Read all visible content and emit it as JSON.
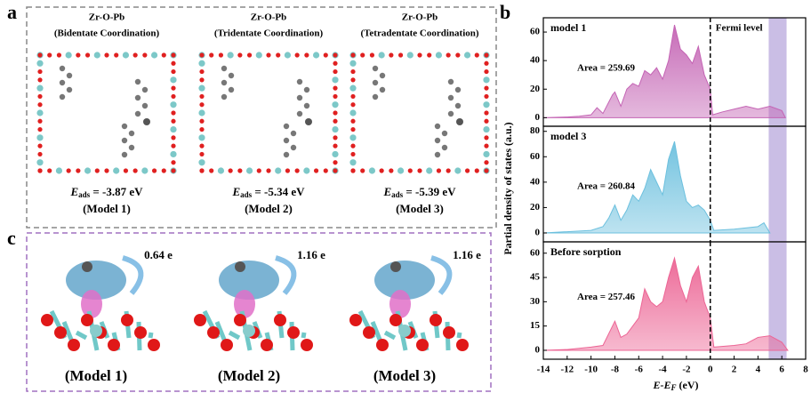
{
  "panel_a": {
    "label": "a",
    "structures": [
      {
        "title": "Zr-O-Pb",
        "subtitle": "(Bidentate Coordination)",
        "energy": [
          "E",
          "ads",
          " = -3.87 eV"
        ],
        "model": "(Model 1)"
      },
      {
        "title": "Zr-O-Pb",
        "subtitle": "(Tridentate Coordination)",
        "energy": [
          "E",
          "ads",
          " = -5.34 eV"
        ],
        "model": "(Model 2)"
      },
      {
        "title": "Zr-O-Pb",
        "subtitle": "(Tetradentate Coordination)",
        "energy": [
          "E",
          "ads",
          " = -5.39 eV"
        ],
        "model": "(Model 3)"
      }
    ]
  },
  "panel_b": {
    "label": "b",
    "y_label": "Partial density of states (a.u.)",
    "x_label": [
      "E-E",
      "F",
      " (eV)"
    ]
  },
  "panel_c": {
    "label": "c",
    "structures": [
      {
        "charge": "0.64 e",
        "model": "(Model 1)"
      },
      {
        "charge": "1.16 e",
        "model": "(Model 2)"
      },
      {
        "charge": "1.16 e",
        "model": "(Model 3)"
      }
    ]
  },
  "chart_data": [
    {
      "type": "area",
      "annotation": "Area = 259.69",
      "vline": 0,
      "vline_label": "Fermi level",
      "shaded_region": [
        4.9,
        6.4
      ],
      "shade_color": "#b8a8dc",
      "x": [
        -14,
        -12,
        -11,
        -10,
        -9.5,
        -9,
        -8.2,
        -8,
        -7.5,
        -7,
        -6.5,
        -6,
        -5.5,
        -5,
        -4.5,
        -4,
        -3.5,
        -3,
        -2.5,
        -2,
        -1.5,
        -1,
        -0.5,
        0,
        0.2,
        1,
        2,
        3,
        4,
        5,
        6,
        6.3
      ],
      "series": [
        {
          "name": "model 1",
          "color": "#c464b4",
          "values": [
            0,
            0.5,
            1,
            2,
            7,
            3,
            16,
            18,
            8,
            20,
            24,
            22,
            33,
            30,
            35,
            27,
            40,
            65,
            48,
            44,
            38,
            50,
            30,
            20,
            2,
            4,
            6,
            8,
            6,
            8,
            5,
            0
          ]
        }
      ],
      "xlim": [
        -14,
        8
      ],
      "ylim": [
        -6,
        70
      ],
      "yticks": [
        0,
        20,
        40,
        60
      ]
    },
    {
      "type": "area",
      "annotation": "Area = 260.84",
      "vline": 0,
      "shaded_region": [
        4.9,
        6.4
      ],
      "shade_color": "#b8a8dc",
      "x": [
        -14,
        -12,
        -10,
        -9,
        -8.5,
        -8,
        -7.5,
        -7,
        -6.5,
        -6,
        -5.5,
        -5,
        -4.5,
        -4,
        -3.5,
        -3,
        -2.5,
        -2,
        -1.5,
        -1,
        -0.5,
        0,
        0.3,
        2,
        4,
        4.5,
        5
      ],
      "series": [
        {
          "name": "model 3",
          "color": "#6cc0de",
          "values": [
            0,
            1,
            2,
            5,
            12,
            22,
            10,
            18,
            30,
            25,
            35,
            50,
            40,
            30,
            58,
            72,
            45,
            25,
            20,
            22,
            18,
            10,
            2,
            3,
            5,
            8,
            0
          ]
        }
      ],
      "xlim": [
        -14,
        8
      ],
      "ylim": [
        -7,
        84
      ],
      "yticks": [
        0,
        20,
        40,
        60,
        80
      ]
    },
    {
      "type": "area",
      "annotation": "Area = 257.46",
      "vline": 0,
      "shaded_region": [
        4.9,
        6.4
      ],
      "shade_color": "#b8a8dc",
      "x": [
        -14,
        -12,
        -10,
        -9,
        -8,
        -7.5,
        -7,
        -6,
        -5.5,
        -5,
        -4.5,
        -4,
        -3.5,
        -3,
        -2.5,
        -2,
        -1.5,
        -1,
        -0.5,
        0,
        0.3,
        2,
        3,
        4,
        5,
        6,
        6.5
      ],
      "series": [
        {
          "name": "Before sorption",
          "color": "#ec6494",
          "values": [
            0,
            0.5,
            2,
            3,
            18,
            8,
            10,
            20,
            38,
            30,
            27,
            30,
            45,
            57,
            40,
            30,
            45,
            52,
            30,
            20,
            2,
            3,
            4,
            8,
            9,
            5,
            0
          ]
        }
      ],
      "xlim": [
        -14,
        8
      ],
      "ylim": [
        -5.5,
        67
      ],
      "yticks": [
        0,
        15,
        30,
        45,
        60
      ],
      "xticks": [
        -14,
        -12,
        -10,
        -8,
        -6,
        -4,
        -2,
        0,
        2,
        4,
        6,
        8
      ]
    }
  ]
}
